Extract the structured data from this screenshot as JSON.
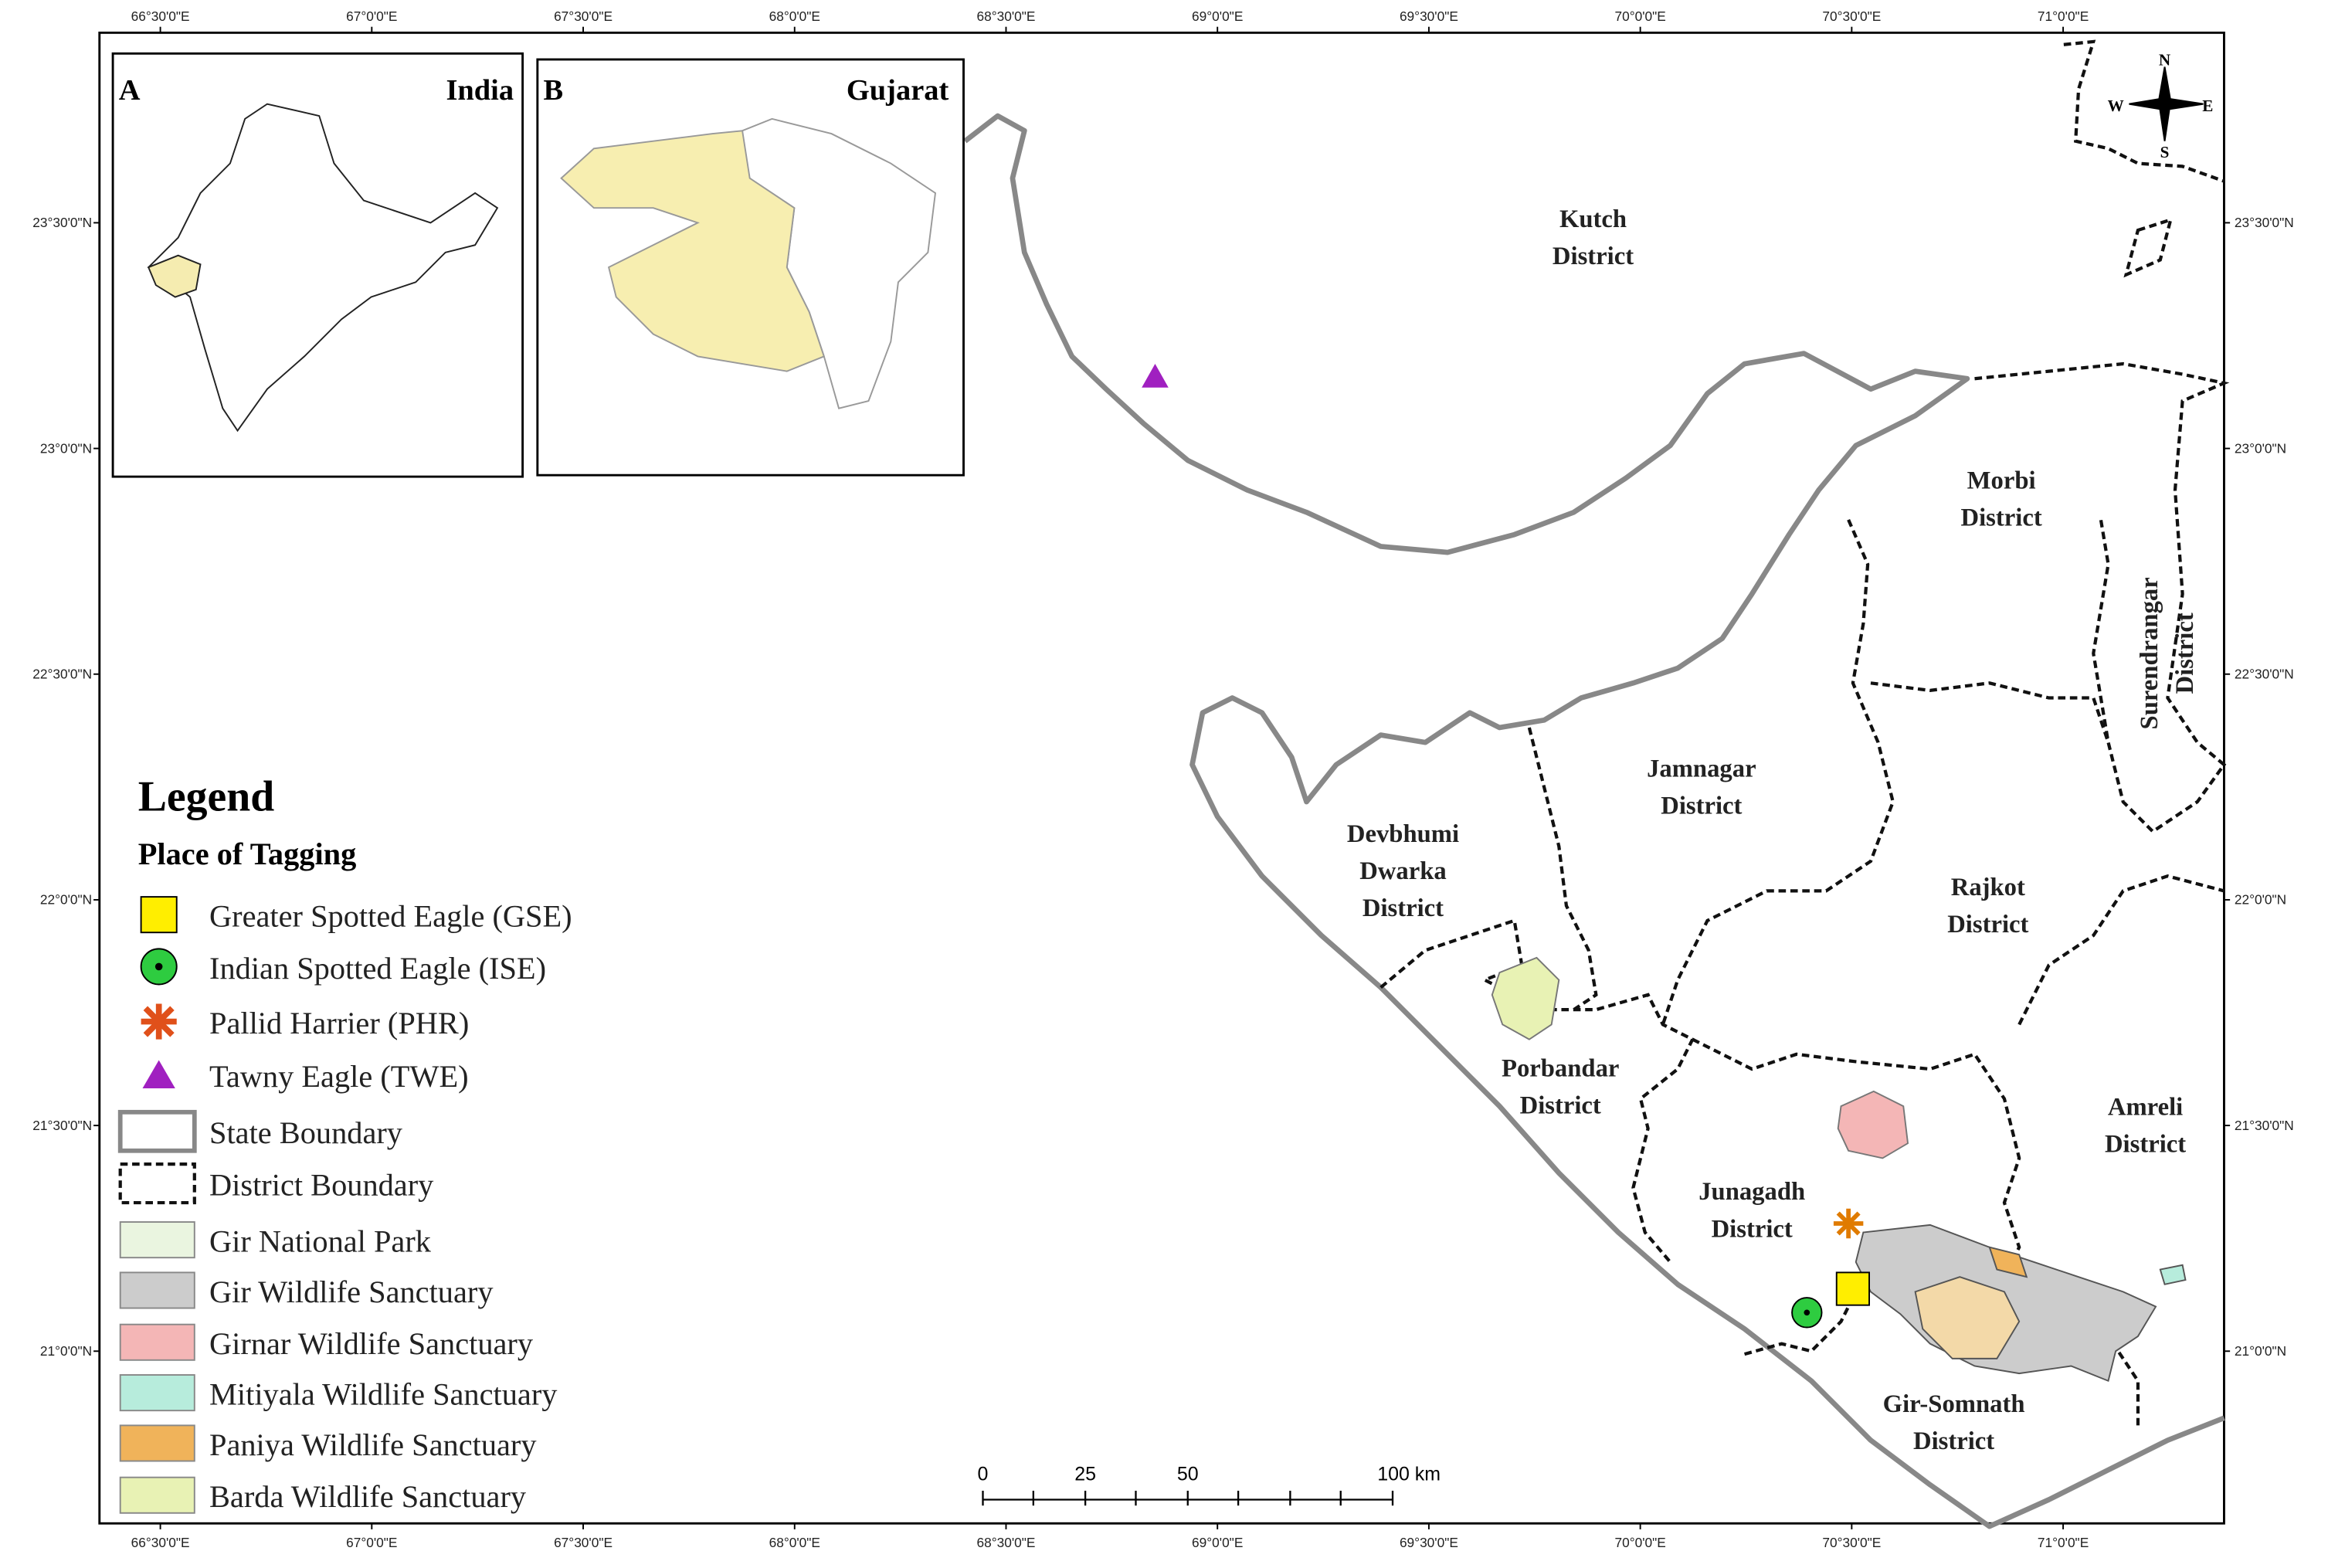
{
  "lon_labels": [
    "66°30'0\"E",
    "67°0'0\"E",
    "67°30'0\"E",
    "68°0'0\"E",
    "68°30'0\"E",
    "69°0'0\"E",
    "69°30'0\"E",
    "70°0'0\"E",
    "70°30'0\"E",
    "71°0'0\"E"
  ],
  "lat_labels": [
    "23°30'0\"N",
    "23°0'0\"N",
    "22°30'0\"N",
    "22°0'0\"N",
    "21°30'0\"N",
    "21°0'0\"N"
  ],
  "insets": [
    {
      "letter": "A",
      "title": "India"
    },
    {
      "letter": "B",
      "title": "Gujarat"
    }
  ],
  "compass": {
    "n": "N",
    "e": "E",
    "s": "S",
    "w": "W"
  },
  "districts": [
    {
      "lines": [
        "Kutch",
        "District"
      ]
    },
    {
      "lines": [
        "Morbi",
        "District"
      ]
    },
    {
      "lines": [
        "Surendrangar",
        "District"
      ]
    },
    {
      "lines": [
        "Jamnagar",
        "District"
      ]
    },
    {
      "lines": [
        "Devbhumi",
        "Dwarka",
        "District"
      ]
    },
    {
      "lines": [
        "Rajkot",
        "District"
      ]
    },
    {
      "lines": [
        "Porbandar",
        "District"
      ]
    },
    {
      "lines": [
        "Amreli",
        "District"
      ]
    },
    {
      "lines": [
        "Junagadh",
        "District"
      ]
    },
    {
      "lines": [
        "Gir-Somnath",
        "District"
      ]
    }
  ],
  "legend": {
    "title": "Legend",
    "subtitle": "Place of Tagging",
    "items": [
      "Greater Spotted Eagle (GSE)",
      "Indian Spotted Eagle (ISE)",
      "Pallid Harrier (PHR)",
      "Tawny Eagle (TWE)",
      "State Boundary",
      "District Boundary",
      "Gir National Park",
      "Gir Wildlife Sanctuary",
      "Girnar Wildlife Sanctuary",
      "Mitiyala Wildlife Sanctuary",
      "Paniya Wildlife Sanctuary",
      "Barda Wildlife Sanctuary"
    ]
  },
  "scale": [
    "0",
    "25",
    "50",
    "100 km"
  ]
}
